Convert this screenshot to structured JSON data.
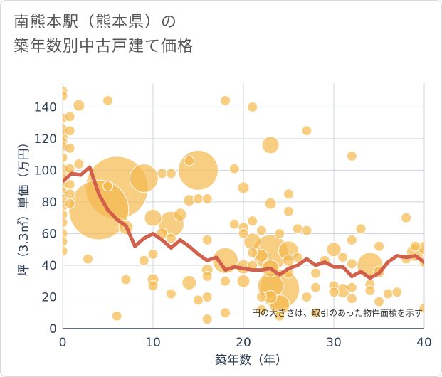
{
  "chart_data": {
    "type": "scatter",
    "title_lines": [
      "南熊本駅（熊本県）の",
      "築年数別中古戸建て価格"
    ],
    "xlabel": "築年数（年）",
    "ylabel": "坪（3.3㎡）単価（万円）",
    "xlim": [
      0,
      40
    ],
    "ylim": [
      0,
      155
    ],
    "x_ticks": [
      0,
      10,
      20,
      30,
      40
    ],
    "y_ticks": [
      0,
      20,
      40,
      60,
      80,
      100,
      120,
      140
    ],
    "grid": true,
    "note": "円の大きさは、取引のあった物件面積を示す",
    "colors": {
      "bubble": "#f5b94f",
      "line": "#d2604a",
      "grid": "#cfd5de"
    },
    "bubbles": [
      [
        0,
        150,
        7
      ],
      [
        0,
        147,
        7
      ],
      [
        0,
        133,
        7
      ],
      [
        0,
        126,
        7
      ],
      [
        0,
        122,
        8
      ],
      [
        0,
        118,
        7
      ],
      [
        0,
        115,
        7
      ],
      [
        0,
        108,
        7
      ],
      [
        0,
        100,
        9
      ],
      [
        0,
        95,
        7
      ],
      [
        0,
        90,
        7
      ],
      [
        0,
        86,
        7
      ],
      [
        0,
        82,
        7
      ],
      [
        0,
        78,
        8
      ],
      [
        0,
        72,
        7
      ],
      [
        0,
        67,
        7
      ],
      [
        0,
        60,
        7
      ],
      [
        0,
        55,
        7
      ],
      [
        0,
        49,
        7
      ],
      [
        0.8,
        134,
        7
      ],
      [
        0.8,
        125,
        7
      ],
      [
        0.8,
        114,
        7
      ],
      [
        0.8,
        101,
        7
      ],
      [
        0.8,
        91,
        7
      ],
      [
        0.8,
        85,
        7
      ],
      [
        0.8,
        79,
        7
      ],
      [
        1.8,
        141,
        8
      ],
      [
        1.8,
        104,
        7
      ],
      [
        2.8,
        44,
        7
      ],
      [
        5,
        144,
        7
      ],
      [
        5,
        90,
        7
      ],
      [
        4,
        75,
        42
      ],
      [
        6,
        89,
        44
      ],
      [
        7,
        64,
        10
      ],
      [
        7,
        31,
        7
      ],
      [
        6,
        8,
        7
      ],
      [
        9,
        95,
        20
      ],
      [
        9,
        43,
        7
      ],
      [
        10,
        70,
        12
      ],
      [
        10,
        31,
        8
      ],
      [
        10,
        27,
        7
      ],
      [
        10,
        47,
        7
      ],
      [
        11,
        98,
        7
      ],
      [
        11,
        60,
        8
      ],
      [
        12,
        98,
        7
      ],
      [
        12,
        66,
        18
      ],
      [
        12,
        57,
        7
      ],
      [
        12,
        22,
        7
      ],
      [
        13,
        72,
        9
      ],
      [
        14,
        106,
        7
      ],
      [
        14,
        81,
        8
      ],
      [
        14,
        29,
        10
      ],
      [
        15,
        100,
        28
      ],
      [
        15,
        18,
        7
      ],
      [
        15,
        82,
        7
      ],
      [
        16,
        82,
        7
      ],
      [
        16,
        56,
        7
      ],
      [
        16,
        37,
        8
      ],
      [
        16,
        33,
        7
      ],
      [
        16,
        20,
        7
      ],
      [
        16,
        6,
        7
      ],
      [
        18,
        144,
        7
      ],
      [
        18,
        43,
        18
      ],
      [
        18,
        30,
        7
      ],
      [
        18,
        10,
        7
      ],
      [
        19,
        101,
        7
      ],
      [
        19,
        66,
        7
      ],
      [
        20,
        89,
        8
      ],
      [
        20,
        64,
        7
      ],
      [
        20,
        60,
        7
      ],
      [
        20,
        39,
        10
      ],
      [
        20,
        30,
        9
      ],
      [
        21,
        140,
        7
      ],
      [
        21,
        68,
        7
      ],
      [
        21,
        55,
        12
      ],
      [
        21,
        48,
        7
      ],
      [
        21,
        40,
        7
      ],
      [
        22,
        62,
        7
      ],
      [
        22,
        46,
        9
      ],
      [
        22,
        20,
        7
      ],
      [
        22,
        12,
        7
      ],
      [
        23,
        116,
        12
      ],
      [
        23,
        79,
        8
      ],
      [
        23,
        48,
        25
      ],
      [
        23,
        38,
        12
      ],
      [
        23,
        27,
        18
      ],
      [
        23,
        20,
        9
      ],
      [
        24,
        60,
        7
      ],
      [
        24,
        25,
        28
      ],
      [
        24,
        15,
        14
      ],
      [
        24,
        8,
        7
      ],
      [
        25,
        85,
        7
      ],
      [
        25,
        74,
        7
      ],
      [
        25,
        49,
        14
      ],
      [
        25,
        43,
        8
      ],
      [
        25,
        35,
        7
      ],
      [
        26,
        63,
        7
      ],
      [
        26,
        45,
        7
      ],
      [
        27,
        125,
        7
      ],
      [
        27,
        62,
        7
      ],
      [
        27,
        20,
        7
      ],
      [
        28,
        35,
        7
      ],
      [
        28,
        26,
        7
      ],
      [
        28,
        10,
        7
      ],
      [
        29,
        43,
        7
      ],
      [
        30,
        50,
        10
      ],
      [
        30,
        27,
        7
      ],
      [
        30,
        23,
        7
      ],
      [
        31,
        45,
        7
      ],
      [
        31,
        24,
        10
      ],
      [
        32,
        109,
        7
      ],
      [
        32,
        56,
        7
      ],
      [
        32,
        41,
        7
      ],
      [
        32,
        26,
        7
      ],
      [
        32,
        19,
        7
      ],
      [
        33,
        63,
        7
      ],
      [
        34,
        40,
        18
      ],
      [
        34,
        28,
        7
      ],
      [
        34,
        24,
        7
      ],
      [
        35,
        52,
        7
      ],
      [
        35,
        36,
        8
      ],
      [
        35,
        17,
        7
      ],
      [
        36,
        22,
        7
      ],
      [
        37,
        23,
        7
      ],
      [
        38,
        70,
        7
      ],
      [
        38,
        44,
        7
      ],
      [
        39,
        48,
        12
      ],
      [
        39,
        52,
        7
      ],
      [
        40,
        51,
        9
      ],
      [
        40,
        42,
        7
      ],
      [
        40,
        13,
        7
      ]
    ],
    "trend": [
      [
        0,
        93
      ],
      [
        1,
        98
      ],
      [
        2,
        97
      ],
      [
        3,
        102
      ],
      [
        4,
        85
      ],
      [
        5,
        75
      ],
      [
        6,
        69
      ],
      [
        7,
        65
      ],
      [
        8,
        52
      ],
      [
        9,
        57
      ],
      [
        10,
        60
      ],
      [
        11,
        56
      ],
      [
        12,
        51
      ],
      [
        13,
        56
      ],
      [
        14,
        52
      ],
      [
        15,
        47
      ],
      [
        16,
        43
      ],
      [
        17,
        45
      ],
      [
        18,
        37
      ],
      [
        19,
        39
      ],
      [
        20,
        38
      ],
      [
        21,
        37
      ],
      [
        22,
        37
      ],
      [
        23,
        38
      ],
      [
        24,
        34
      ],
      [
        25,
        38
      ],
      [
        26,
        40
      ],
      [
        27,
        44
      ],
      [
        28,
        40
      ],
      [
        29,
        42
      ],
      [
        30,
        39
      ],
      [
        31,
        39
      ],
      [
        32,
        33
      ],
      [
        33,
        36
      ],
      [
        34,
        32
      ],
      [
        35,
        35
      ],
      [
        36,
        42
      ],
      [
        37,
        46
      ],
      [
        38,
        45
      ],
      [
        39,
        46
      ],
      [
        40,
        42
      ]
    ]
  }
}
